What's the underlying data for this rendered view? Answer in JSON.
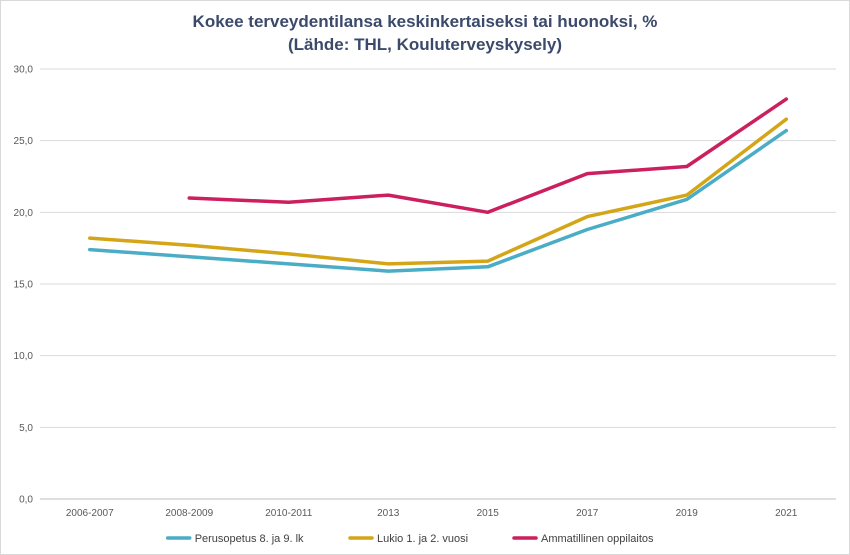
{
  "chart_data": {
    "type": "line",
    "title": "Kokee terveydentilansa keskinkertaiseksi tai huonoksi, %",
    "subtitle": "(Lähde: THL, Kouluterveyskysely)",
    "categories": [
      "2006-2007",
      "2008-2009",
      "2010-2011",
      "2013",
      "2015",
      "2017",
      "2019",
      "2021"
    ],
    "y_tick_labels": [
      "0,0",
      "5,0",
      "10,0",
      "15,0",
      "20,0",
      "25,0",
      "30,0"
    ],
    "ylim": [
      0,
      30
    ],
    "grid": true,
    "legend_position": "bottom",
    "series": [
      {
        "name": "Perusopetus 8. ja 9. lk",
        "color": "#4aacc5",
        "values": [
          17.4,
          16.9,
          16.4,
          15.9,
          16.2,
          18.8,
          20.9,
          25.7
        ]
      },
      {
        "name": "Lukio 1. ja 2. vuosi",
        "color": "#d4a617",
        "values": [
          18.2,
          17.7,
          17.1,
          16.4,
          16.6,
          19.7,
          21.2,
          26.5
        ]
      },
      {
        "name": "Ammatillinen oppilaitos",
        "color": "#cc1f5e",
        "values": [
          null,
          21.0,
          20.7,
          21.2,
          20.0,
          22.7,
          23.2,
          27.9
        ]
      }
    ]
  }
}
